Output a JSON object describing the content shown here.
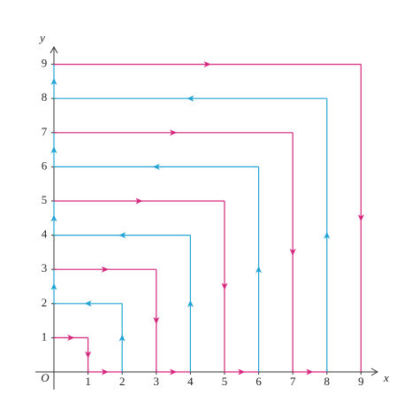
{
  "axes": {
    "x_label": "x",
    "y_label": "y",
    "origin_label": "O",
    "x_ticks": [
      1,
      2,
      3,
      4,
      5,
      6,
      7,
      8,
      9
    ],
    "y_ticks": [
      1,
      2,
      3,
      4,
      5,
      6,
      7,
      8,
      9
    ]
  }
}
